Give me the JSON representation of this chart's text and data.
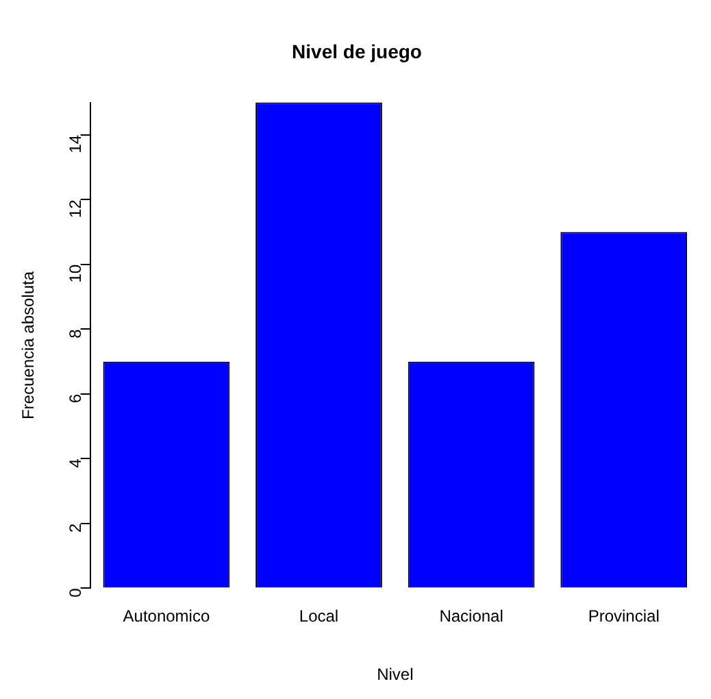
{
  "chart_data": {
    "type": "bar",
    "title": "Nivel de juego",
    "xlabel": "Nivel",
    "ylabel": "Frecuencia absoluta",
    "categories": [
      "Autonomico",
      "Local",
      "Nacional",
      "Provincial"
    ],
    "values": [
      7,
      15,
      7,
      11
    ],
    "color": "#0000ff",
    "ylim": [
      0,
      15
    ],
    "yticks": [
      0,
      2,
      4,
      6,
      8,
      10,
      12,
      14
    ],
    "grid": false,
    "legend": false
  }
}
